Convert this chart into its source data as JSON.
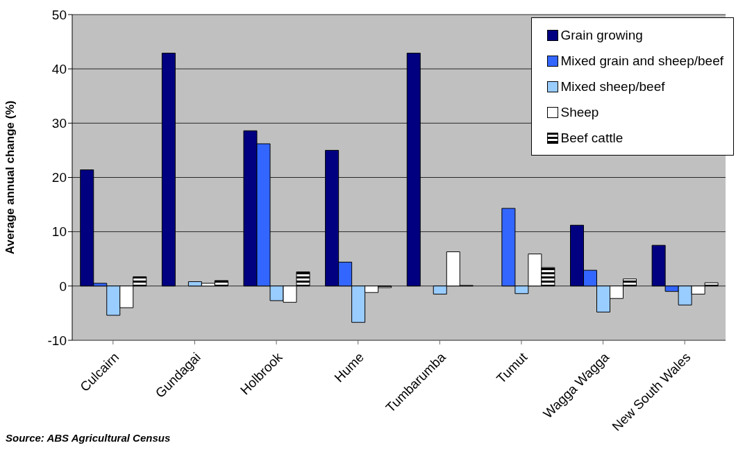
{
  "chart_data": {
    "type": "bar",
    "ylabel": "Average annual change (%)",
    "categories": [
      "Culcairn",
      "Gundagai",
      "Holbrook",
      "Hume",
      "Tumbarumba",
      "Tumut",
      "Wagga Wagga",
      "New South Wales"
    ],
    "series": [
      {
        "name": "Grain growing",
        "color": "#000080",
        "values": [
          21.4,
          42.9,
          28.6,
          25.0,
          42.9,
          null,
          11.2,
          7.5
        ]
      },
      {
        "name": "Mixed grain and sheep/beef",
        "color": "#3366ff",
        "values": [
          0.5,
          null,
          26.2,
          4.4,
          null,
          14.3,
          2.9,
          -1.0
        ]
      },
      {
        "name": "Mixed sheep/beef",
        "color": "#99ccff",
        "values": [
          -5.4,
          0.8,
          -2.7,
          -6.7,
          -1.5,
          -1.4,
          -4.8,
          -3.5
        ]
      },
      {
        "name": "Sheep",
        "color": "#ffffff",
        "values": [
          -4.0,
          0.5,
          -3.0,
          -1.2,
          6.3,
          5.9,
          -2.3,
          -1.5
        ]
      },
      {
        "name": "Beef cattle",
        "color": "#000000",
        "values": [
          1.7,
          1.0,
          2.6,
          -0.3,
          0.1,
          3.4,
          1.3,
          0.6
        ]
      }
    ],
    "ylim": [
      -10,
      50
    ],
    "yticks": [
      -10,
      0,
      10,
      20,
      30,
      40,
      50
    ],
    "grid": "y",
    "legend": "top right",
    "annotations": [
      "Source: ABS Agricultural Census"
    ]
  }
}
